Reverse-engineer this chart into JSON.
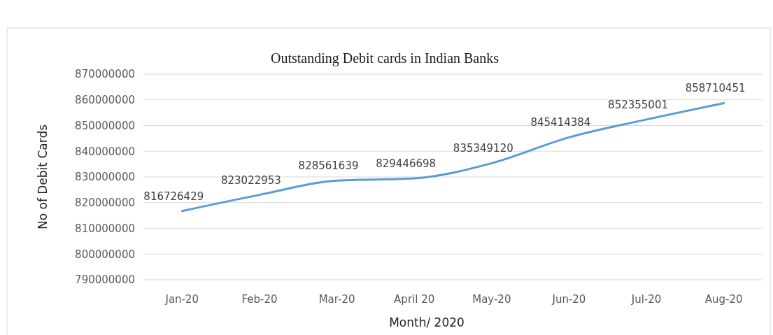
{
  "chart_data": {
    "type": "line",
    "title": "Outstanding Debit cards in Indian Banks",
    "xlabel": "Month/ 2020",
    "ylabel": "No of Debit Cards",
    "categories": [
      "Jan-20",
      "Feb-20",
      "Mar-20",
      "April 20",
      "May-20",
      "Jun-20",
      "Jul-20",
      "Aug-20"
    ],
    "series": [
      {
        "color": "#5b9bd5",
        "values": [
          816726429,
          823022953,
          828561639,
          829446698,
          835349120,
          845414384,
          852355001,
          858710451
        ]
      }
    ],
    "ylim": [
      790000000,
      870000000
    ],
    "yticks": [
      790000000,
      800000000,
      810000000,
      820000000,
      830000000,
      840000000,
      850000000,
      860000000,
      870000000
    ],
    "grid": "y",
    "data_labels": true,
    "marker": "none",
    "line_style": "solid"
  }
}
